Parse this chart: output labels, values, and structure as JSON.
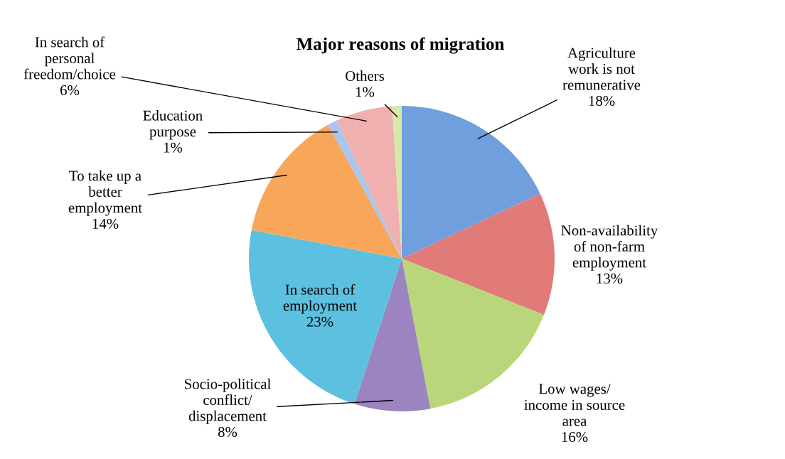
{
  "chart_data": {
    "type": "pie",
    "title": "Major reasons of migration",
    "categories": [
      "Agriculture\nwork is not\nremunerative",
      "Non-availability\nof non-farm\nemployment",
      "Low wages/\nincome in source\narea",
      "Socio-political\nconflict/\ndisplacement",
      "In search of\nemployment",
      "To take up a\nbetter\nemployment",
      "Education\npurpose",
      "In search of\npersonal\nfreedom/choice",
      "Others"
    ],
    "values": [
      18,
      13,
      16,
      8,
      23,
      14,
      1,
      6,
      1
    ],
    "value_labels": [
      "18%",
      "13%",
      "16%",
      "8%",
      "23%",
      "14%",
      "1%",
      "6%",
      "1%"
    ],
    "colors": [
      "#6f9fdc",
      "#e07b78",
      "#b9d77a",
      "#9c84c0",
      "#5cc0e0",
      "#f8a75a",
      "#a9c6f0",
      "#f0b0b0",
      "#d6e9a8"
    ]
  }
}
